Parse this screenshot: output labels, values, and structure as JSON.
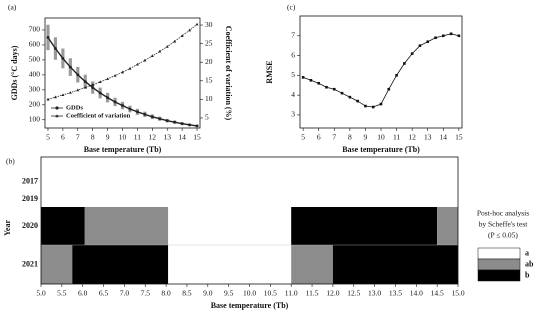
{
  "chart_data": [
    {
      "type": "line",
      "panel_label": "(a)",
      "x": [
        5,
        5.5,
        6,
        6.5,
        7,
        7.5,
        8,
        8.5,
        9,
        9.5,
        10,
        10.5,
        11,
        11.5,
        12,
        12.5,
        13,
        13.5,
        14,
        14.5,
        15
      ],
      "xlim": [
        4.8,
        15.2
      ],
      "xticks": [
        5,
        6,
        7,
        8,
        9,
        10,
        11,
        12,
        13,
        14,
        15
      ],
      "xlabel": "Base temperature (Tb)",
      "ylabel": "GDDs (°C days)",
      "y2label": "Coefficient of variation (%)",
      "ylim": [
        45,
        780
      ],
      "yticks": [
        100,
        200,
        300,
        400,
        500,
        600,
        700
      ],
      "y2lim": [
        2.3,
        31.9
      ],
      "y2ticks": [
        5,
        10,
        15,
        20,
        25,
        30
      ],
      "legend": "lower left",
      "series": [
        {
          "name": "GDDs",
          "color": "#222222",
          "marker": "circle",
          "values": [
            650,
            576,
            510,
            452,
            401,
            355,
            315,
            279,
            248,
            219,
            195,
            172,
            153,
            136,
            120,
            107,
            94,
            84,
            74,
            66,
            59
          ],
          "errors": [
            85,
            75,
            66,
            59,
            52,
            46,
            41,
            36,
            32,
            28,
            25,
            22,
            20,
            18,
            16,
            14,
            12,
            11,
            10,
            9,
            8
          ]
        },
        {
          "name": "Coefficient of variation",
          "color": "#222222",
          "marker": "triangle",
          "axis": "y2",
          "values": [
            10,
            10.6,
            11.2,
            11.8,
            12.5,
            13.2,
            13.9,
            14.7,
            15.5,
            16.4,
            17.3,
            18.3,
            19.4,
            20.5,
            21.7,
            22.9,
            24.2,
            25.6,
            27.1,
            28.6,
            30.2
          ]
        }
      ]
    },
    {
      "type": "heatmap",
      "panel_label": "(b)",
      "rows": [
        "2017",
        "2019",
        "2020",
        "2021"
      ],
      "ylabel": "Year",
      "xlabel": "Base temperature (Tb)",
      "xlim": [
        5,
        15
      ],
      "xticks": [
        {
          "value": 5,
          "label": "5.0"
        },
        {
          "value": 5.5,
          "label": "5.5"
        },
        {
          "value": 6,
          "label": "6.0"
        },
        {
          "value": 6.5,
          "label": "6.5"
        },
        {
          "value": 7,
          "label": "7.0"
        },
        {
          "value": 7.5,
          "label": "7.5"
        },
        {
          "value": 8,
          "label": "8.0"
        },
        {
          "value": 8.5,
          "label": "8.5"
        },
        {
          "value": 9,
          "label": "9.0"
        },
        {
          "value": 9.5,
          "label": "9.5"
        },
        {
          "value": 10,
          "label": "10.0"
        },
        {
          "value": 10.5,
          "label": "10.5"
        },
        {
          "value": 11,
          "label": "11.0"
        },
        {
          "value": 11.5,
          "label": "11.5"
        },
        {
          "value": 12,
          "label": "12.0"
        },
        {
          "value": 12.5,
          "label": "12.5"
        },
        {
          "value": 13,
          "label": "13.0"
        },
        {
          "value": 13.5,
          "label": "13.5"
        },
        {
          "value": 14,
          "label": "14.0"
        },
        {
          "value": 14.5,
          "label": "14.5"
        },
        {
          "value": 15,
          "label": "15.0"
        }
      ],
      "groups": [
        {
          "name": "a",
          "color": "#ffffff"
        },
        {
          "name": "ab",
          "color": "#8c8c8c"
        },
        {
          "name": "b",
          "color": "#000000"
        }
      ],
      "legend_title": [
        "Post-hoc analysis",
        "by Scheffe's test",
        "(P ≤ 0.05)"
      ],
      "segments": [
        [
          [
            5,
            15,
            0
          ]
        ],
        [
          [
            5,
            15,
            0
          ]
        ],
        [
          [
            5,
            6.05,
            2
          ],
          [
            6.05,
            8.05,
            1
          ],
          [
            8.05,
            11,
            0
          ],
          [
            11,
            14.5,
            2
          ],
          [
            14.5,
            15,
            1
          ]
        ],
        [
          [
            5,
            5.75,
            1
          ],
          [
            5.75,
            8.05,
            2
          ],
          [
            8.05,
            11,
            0
          ],
          [
            11,
            12,
            1
          ],
          [
            12,
            15,
            2
          ]
        ]
      ]
    },
    {
      "type": "line",
      "panel_label": "(c)",
      "x": [
        5,
        5.5,
        6,
        6.5,
        7,
        7.5,
        8,
        8.5,
        9,
        9.5,
        10,
        10.5,
        11,
        11.5,
        12,
        12.5,
        13,
        13.5,
        14,
        14.5,
        15
      ],
      "xlim": [
        4.8,
        15.2
      ],
      "xticks": [
        5,
        6,
        7,
        8,
        9,
        10,
        11,
        12,
        13,
        14,
        15
      ],
      "xlabel": "Base temperature (Tb)",
      "ylabel": "RMSE",
      "ylim": [
        2.34,
        8.0
      ],
      "yticks": [
        3,
        4,
        5,
        6,
        7
      ],
      "series": [
        {
          "name": "RMSE",
          "color": "#111111",
          "marker": "square",
          "values": [
            4.9,
            4.75,
            4.6,
            4.4,
            4.3,
            4.1,
            3.9,
            3.7,
            3.45,
            3.4,
            3.55,
            4.3,
            5.0,
            5.6,
            6.1,
            6.5,
            6.7,
            6.9,
            7.0,
            7.1,
            7.0
          ]
        }
      ]
    }
  ]
}
